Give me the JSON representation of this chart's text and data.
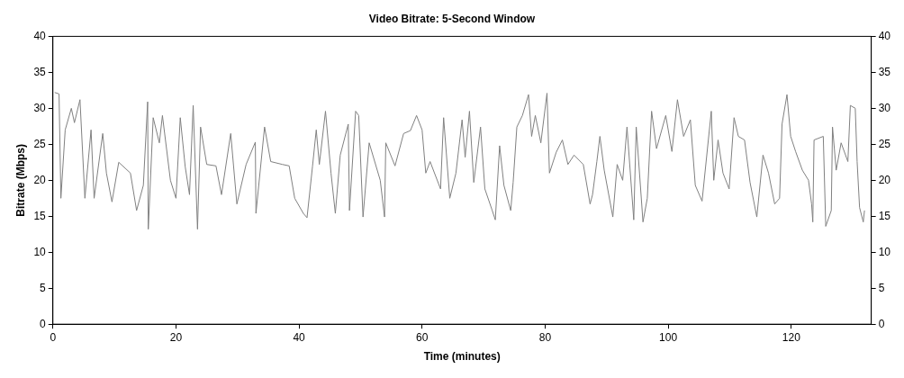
{
  "chart_data": {
    "type": "line",
    "title": "Video Bitrate: 5-Second Window",
    "xlabel": "Time (minutes)",
    "ylabel": "Bitrate (Mbps)",
    "xlim": [
      0,
      133
    ],
    "xticks": [
      0,
      20,
      40,
      60,
      80,
      100,
      120
    ],
    "ylim": [
      0,
      40
    ],
    "yticks": [
      0,
      5,
      10,
      15,
      20,
      25,
      30,
      35,
      40
    ],
    "y2lim": [
      0,
      40
    ],
    "y2ticks": [
      0,
      5,
      10,
      15,
      20,
      25,
      30,
      35,
      40
    ],
    "marker": "none",
    "line_style": "solid",
    "x": [
      0.3,
      1,
      1.3,
      2,
      3,
      3.5,
      4.4,
      5.2,
      6.2,
      6.7,
      8.1,
      8.7,
      9.6,
      10.7,
      12.6,
      13.6,
      14.7,
      15.4,
      15.5,
      16.3,
      17.3,
      17.8,
      19.1,
      20,
      20.7,
      21.5,
      22.2,
      22.8,
      23.5,
      24,
      25,
      26.5,
      27.4,
      28.9,
      29.9,
      31.4,
      32.9,
      33,
      34.4,
      35.4,
      37.3,
      38.4,
      39.3,
      40.7,
      41.3,
      42.2,
      42.8,
      43.3,
      44.3,
      45.2,
      45.9,
      46.7,
      48,
      48.2,
      49.2,
      49.7,
      50.4,
      51.4,
      53.2,
      53.9,
      54.1,
      55.6,
      57,
      58.1,
      59.1,
      60,
      60.6,
      61.3,
      63,
      63.5,
      64.5,
      65.5,
      66.5,
      67,
      67.7,
      68.4,
      69.5,
      70.2,
      71.4,
      71.9,
      72.6,
      73.3,
      74.4,
      74.8,
      75.4,
      76.3,
      77.3,
      77.8,
      78.4,
      79.3,
      80.3,
      80.7,
      81.8,
      82.8,
      83.7,
      84.7,
      86.2,
      87.3,
      87.7,
      88.4,
      88.9,
      89.6,
      91,
      91.7,
      92.6,
      93.3,
      94.4,
      94.8,
      95.9,
      96.6,
      97.3,
      98.1,
      99.6,
      100.6,
      101.5,
      102.5,
      103.6,
      104.4,
      105.5,
      107,
      107.4,
      108.1,
      108.9,
      109.9,
      110.7,
      111.4,
      112.4,
      113.3,
      114.4,
      115.4,
      116.3,
      117.3,
      118.1,
      118.5,
      119.3,
      119.9,
      120.7,
      121.8,
      122.8,
      123.3,
      123.5,
      123.7,
      125.2,
      125.6,
      126.5,
      126.7,
      127.3,
      128.1,
      129.2,
      129.6,
      130.4,
      130.7,
      131.1,
      131.7,
      131.9
    ],
    "series": [
      {
        "color": "#808080",
        "values": [
          32.2,
          32,
          17.5,
          27,
          30,
          28,
          31.2,
          17.5,
          27,
          17.5,
          26.5,
          21,
          17,
          22.5,
          21,
          15.8,
          19.3,
          30.9,
          13.2,
          28.7,
          25.2,
          29,
          20,
          17.5,
          28.7,
          21.9,
          18,
          30.4,
          13.2,
          27.4,
          22.2,
          22,
          18,
          26.5,
          16.7,
          22.2,
          25.3,
          15.4,
          27.4,
          22.6,
          22.2,
          22,
          17.5,
          15.4,
          14.8,
          22,
          27,
          22.2,
          29.6,
          21,
          15.4,
          23.5,
          27.8,
          15.8,
          29.6,
          29,
          14.9,
          25.2,
          20,
          14.9,
          25.2,
          22,
          26.5,
          26.9,
          29,
          27,
          21,
          22.6,
          18.8,
          28.7,
          17.5,
          21,
          28.4,
          23.2,
          29.6,
          19.7,
          27.4,
          18.8,
          15.8,
          14.5,
          24.8,
          19.3,
          15.8,
          19.7,
          27.4,
          29,
          31.9,
          26.1,
          29,
          25.2,
          32.1,
          21,
          23.9,
          25.6,
          22.2,
          23.5,
          22.2,
          16.7,
          18,
          22.6,
          26.1,
          21.4,
          14.9,
          22.2,
          20,
          27.4,
          14.5,
          27.4,
          14.2,
          17.5,
          29.6,
          24.4,
          29,
          24,
          31.2,
          26.1,
          28.4,
          19.3,
          17.1,
          29.6,
          20,
          25.6,
          21,
          18.8,
          28.7,
          26.1,
          25.6,
          19.7,
          14.9,
          23.5,
          21,
          16.7,
          17.5,
          27.8,
          31.9,
          26.1,
          24,
          21.4,
          20,
          16.7,
          14.2,
          25.6,
          26.1,
          13.6,
          15.8,
          27.4,
          21.4,
          25.2,
          22.6,
          30.4,
          30,
          22.6,
          16.2,
          14.2,
          15.8
        ]
      }
    ]
  }
}
